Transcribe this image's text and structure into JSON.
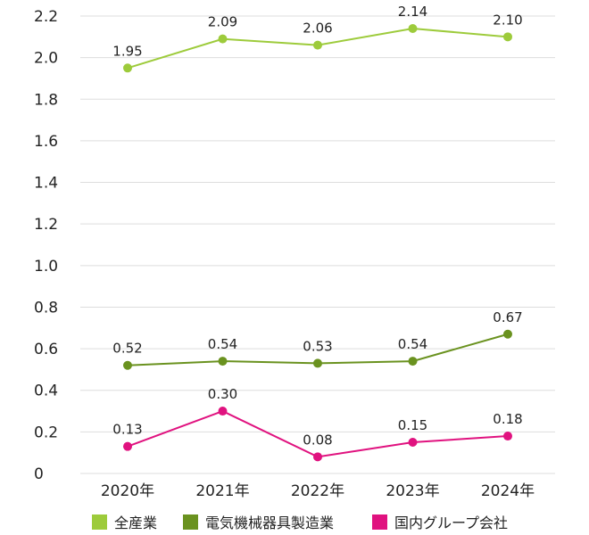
{
  "chart_data": {
    "type": "line",
    "title": "",
    "xlabel": "",
    "ylabel": "",
    "categories": [
      "2020年",
      "2021年",
      "2022年",
      "2023年",
      "2024年"
    ],
    "ylim": [
      0,
      2.2
    ],
    "yticks": [
      0,
      0.2,
      0.4,
      0.6,
      0.8,
      1.0,
      1.2,
      1.4,
      1.6,
      1.8,
      2.0,
      2.2
    ],
    "ytick_labels": [
      "0",
      "0.2",
      "0.4",
      "0.6",
      "0.8",
      "1.0",
      "1.2",
      "1.4",
      "1.6",
      "1.8",
      "2.0",
      "2.2"
    ],
    "grid": true,
    "legend_position": "bottom",
    "series": [
      {
        "name": "全産業",
        "color": "#9dcb3b",
        "values": [
          1.95,
          2.09,
          2.06,
          2.14,
          2.1
        ],
        "labels": [
          "1.95",
          "2.09",
          "2.06",
          "2.14",
          "2.10"
        ]
      },
      {
        "name": "電気機械器具製造業",
        "color": "#6a921f",
        "values": [
          0.52,
          0.54,
          0.53,
          0.54,
          0.67
        ],
        "labels": [
          "0.52",
          "0.54",
          "0.53",
          "0.54",
          "0.67"
        ]
      },
      {
        "name": "国内グループ会社",
        "color": "#e0127f",
        "values": [
          0.13,
          0.3,
          0.08,
          0.15,
          0.18
        ],
        "labels": [
          "0.13",
          "0.30",
          "0.08",
          "0.15",
          "0.18"
        ]
      }
    ]
  }
}
